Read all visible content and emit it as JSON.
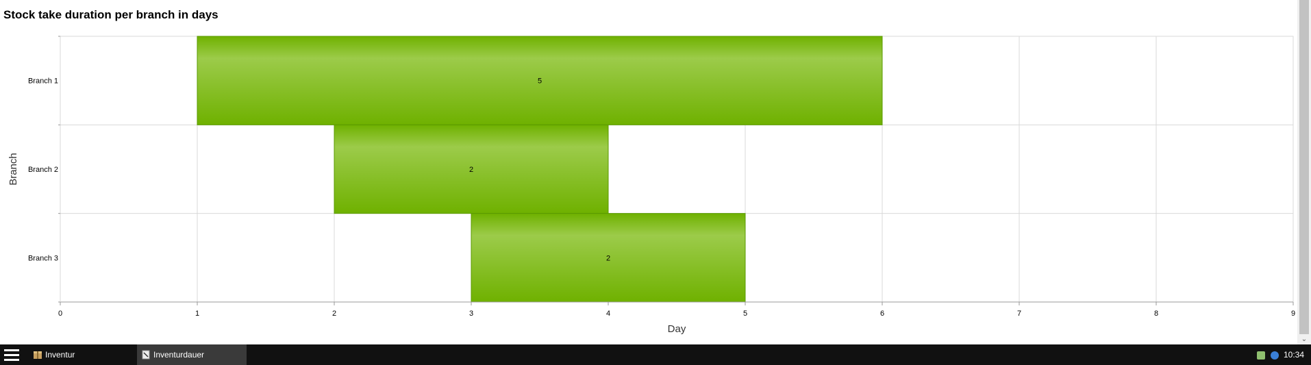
{
  "chart_data": {
    "type": "bar",
    "orientation": "horizontal",
    "title": "Stock take duration per branch in days",
    "xlabel": "Day",
    "ylabel": "Branch",
    "xlim": [
      0,
      9
    ],
    "xticks": [
      "0",
      "1",
      "2",
      "3",
      "4",
      "5",
      "6",
      "7",
      "8",
      "9"
    ],
    "categories": [
      "Branch 1",
      "Branch 2",
      "Branch 3"
    ],
    "bars": [
      {
        "category": "Branch 1",
        "start": 1,
        "end": 6,
        "label": "5"
      },
      {
        "category": "Branch 2",
        "start": 2,
        "end": 4,
        "label": "2"
      },
      {
        "category": "Branch 3",
        "start": 3,
        "end": 5,
        "label": "2"
      }
    ],
    "grid": true,
    "colors": {
      "bar_light": "#9ccb4a",
      "bar_dark": "#6fb100",
      "grid": "#d8d8d8",
      "axis": "#999999"
    }
  },
  "taskbar": {
    "items": [
      {
        "label": "Inventur",
        "icon": "package-icon",
        "active": false
      },
      {
        "label": "Inventurdauer",
        "icon": "document-icon",
        "active": true
      }
    ],
    "tray": {
      "time": "10:34",
      "icons": [
        "network-icon",
        "info-icon"
      ]
    }
  }
}
